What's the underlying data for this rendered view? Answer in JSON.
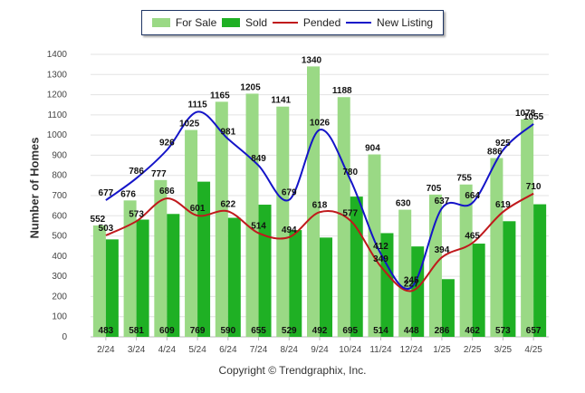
{
  "legend": {
    "for_sale": "For Sale",
    "sold": "Sold",
    "pended": "Pended",
    "new_listing": "New Listing"
  },
  "footer": "Copyright © Trendgraphix, Inc.",
  "colors": {
    "for_sale": "#9ad985",
    "sold": "#1fb024",
    "pended": "#c0191c",
    "new_listing": "#1414c8"
  },
  "chart_data": {
    "type": "bar",
    "ylabel": "Number of Homes",
    "xlabel": "",
    "ylim": [
      0,
      1400
    ],
    "yticks": [
      0,
      100,
      200,
      300,
      400,
      500,
      600,
      700,
      800,
      900,
      1000,
      1100,
      1200,
      1300,
      1400
    ],
    "grid": true,
    "legend_position": "top",
    "categories": [
      "2/24",
      "3/24",
      "4/24",
      "5/24",
      "6/24",
      "7/24",
      "8/24",
      "9/24",
      "10/24",
      "11/24",
      "12/24",
      "1/25",
      "2/25",
      "3/25",
      "4/25"
    ],
    "series": [
      {
        "name": "For Sale",
        "kind": "bar",
        "values": [
          552,
          676,
          777,
          1025,
          1165,
          1205,
          1141,
          1340,
          1188,
          904,
          630,
          705,
          755,
          886,
          1078
        ]
      },
      {
        "name": "Sold",
        "kind": "bar",
        "values": [
          483,
          581,
          609,
          769,
          590,
          655,
          529,
          492,
          695,
          514,
          448,
          286,
          462,
          573,
          657
        ]
      },
      {
        "name": "Pended",
        "kind": "line",
        "values": [
          503,
          573,
          686,
          601,
          622,
          514,
          494,
          618,
          577,
          349,
          227,
          394,
          465,
          619,
          710
        ]
      },
      {
        "name": "New Listing",
        "kind": "line",
        "values": [
          677,
          786,
          926,
          1115,
          981,
          849,
          679,
          1026,
          780,
          412,
          245,
          637,
          664,
          925,
          1055
        ]
      }
    ]
  }
}
